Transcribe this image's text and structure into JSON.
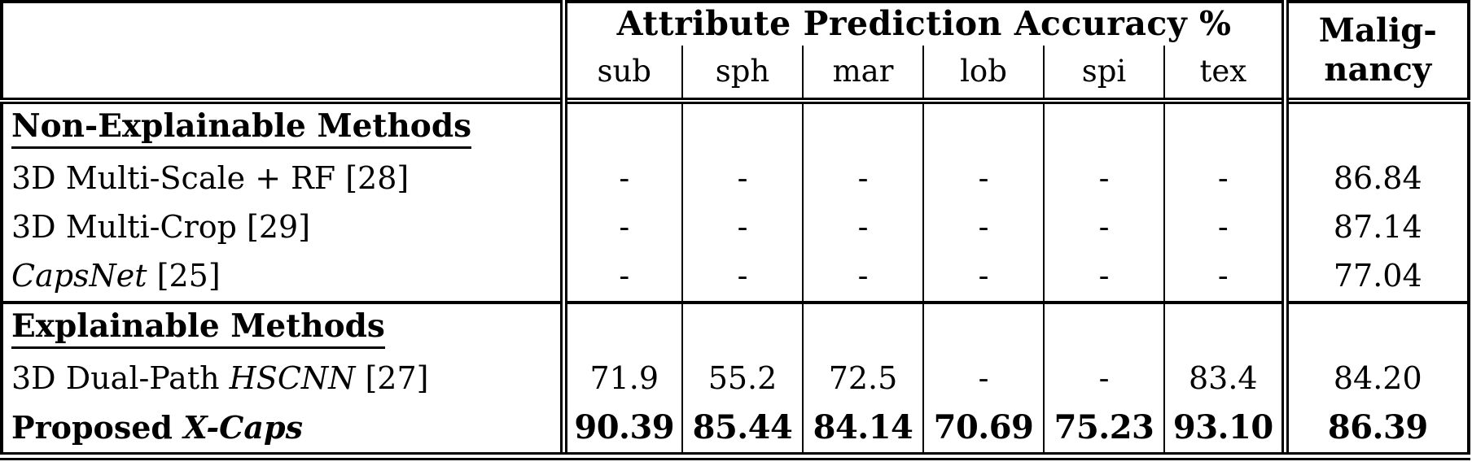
{
  "colors": {
    "text": "#000000",
    "border": "#000000",
    "background": "#ffffff"
  },
  "table": {
    "group_header": "Attribute Prediction Accuracy %",
    "sub_headers": [
      "sub",
      "sph",
      "mar",
      "lob",
      "spi",
      "tex"
    ],
    "malignancy_header": [
      "Malig-",
      "nancy"
    ],
    "sections": [
      {
        "heading": "Non-Explainable Methods",
        "rows": [
          {
            "method_parts": [
              {
                "text": "3D Multi-Scale + RF [28]",
                "italic": false
              }
            ],
            "values": [
              "-",
              "-",
              "-",
              "-",
              "-",
              "-"
            ],
            "malignancy": "86.84",
            "bold": false
          },
          {
            "method_parts": [
              {
                "text": "3D Multi-Crop [29]",
                "italic": false
              }
            ],
            "values": [
              "-",
              "-",
              "-",
              "-",
              "-",
              "-"
            ],
            "malignancy": "87.14",
            "bold": false
          },
          {
            "method_parts": [
              {
                "text": "CapsNet",
                "italic": true
              },
              {
                "text": " [25]",
                "italic": false
              }
            ],
            "values": [
              "-",
              "-",
              "-",
              "-",
              "-",
              "-"
            ],
            "malignancy": "77.04",
            "bold": false
          }
        ]
      },
      {
        "heading": "Explainable Methods",
        "rows": [
          {
            "method_parts": [
              {
                "text": "3D Dual-Path ",
                "italic": false
              },
              {
                "text": "HSCNN",
                "italic": true
              },
              {
                "text": " [27]",
                "italic": false
              }
            ],
            "values": [
              "71.9",
              "55.2",
              "72.5",
              "-",
              "-",
              "83.4"
            ],
            "malignancy": "84.20",
            "bold": false
          },
          {
            "method_parts": [
              {
                "text": "Proposed ",
                "italic": false
              },
              {
                "text": "X-Caps",
                "italic": true
              }
            ],
            "values": [
              "90.39",
              "85.44",
              "84.14",
              "70.69",
              "75.23",
              "93.10"
            ],
            "malignancy": "86.39",
            "bold": true
          }
        ]
      }
    ]
  }
}
